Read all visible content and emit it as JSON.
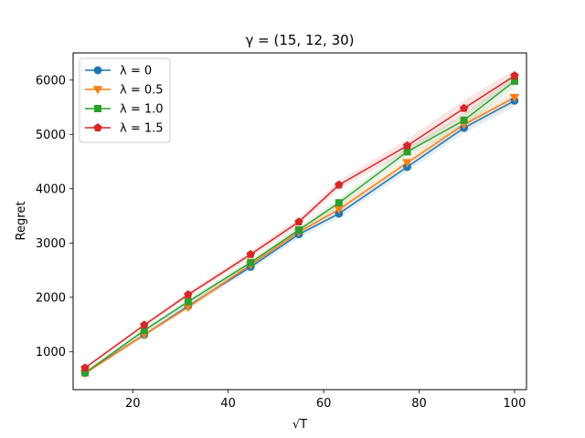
{
  "chart_data": {
    "type": "line",
    "title": "γ = (15, 12, 30)",
    "xlabel": "√T",
    "ylabel": "Regret",
    "xlim": [
      7.5,
      102.5
    ],
    "ylim": [
      300,
      6500
    ],
    "xticks": [
      20,
      40,
      60,
      80,
      100
    ],
    "yticks": [
      1000,
      2000,
      3000,
      4000,
      5000,
      6000
    ],
    "x": [
      10,
      22.4,
      31.6,
      44.7,
      54.8,
      63.2,
      77.5,
      89.4,
      100
    ],
    "legend": "top-left",
    "grid": false,
    "series": [
      {
        "name": "λ = 0",
        "color": "#1f77b4",
        "marker": "circle",
        "values": [
          610,
          1310,
          1840,
          2560,
          3160,
          3540,
          4400,
          5120,
          5620
        ],
        "band": [
          30,
          40,
          50,
          60,
          70,
          80,
          90,
          100,
          110
        ]
      },
      {
        "name": "λ = 0.5",
        "color": "#ff7f0e",
        "marker": "triangle-down",
        "values": [
          600,
          1310,
          1820,
          2600,
          3200,
          3620,
          4480,
          5180,
          5680
        ],
        "band": [
          30,
          40,
          50,
          60,
          70,
          80,
          90,
          100,
          110
        ]
      },
      {
        "name": "λ = 1.0",
        "color": "#2ca02c",
        "marker": "square",
        "values": [
          610,
          1390,
          1920,
          2640,
          3240,
          3740,
          4680,
          5260,
          5980
        ],
        "band": [
          30,
          40,
          50,
          60,
          70,
          80,
          90,
          110,
          120
        ]
      },
      {
        "name": "λ = 1.5",
        "color": "#d62728",
        "marker": "pentagon",
        "values": [
          700,
          1490,
          2050,
          2790,
          3390,
          4070,
          4790,
          5480,
          6080
        ],
        "band": [
          30,
          40,
          50,
          60,
          70,
          80,
          120,
          150,
          110
        ]
      }
    ]
  }
}
